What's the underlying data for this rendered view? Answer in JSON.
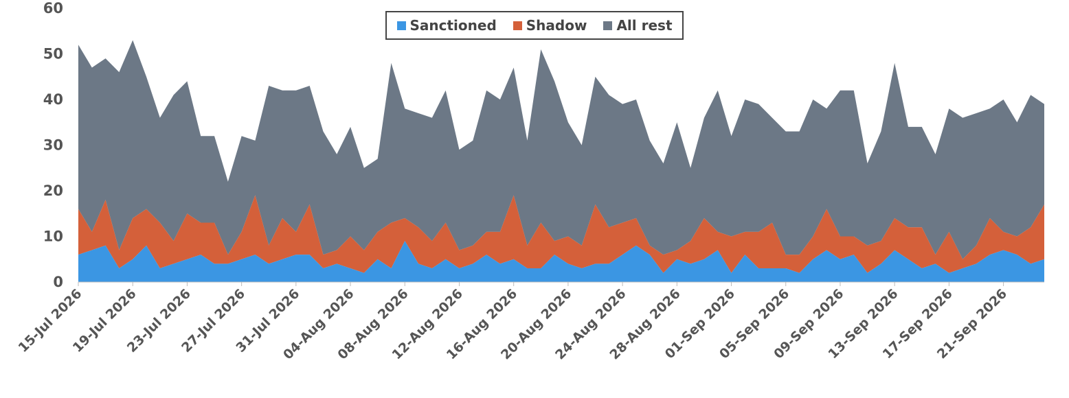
{
  "chart_data": {
    "type": "area",
    "stacked": true,
    "ylim": [
      0,
      60
    ],
    "yticks": [
      0,
      10,
      20,
      30,
      40,
      50,
      60
    ],
    "x_start": "15-Jul-2026",
    "x_tick_labels": [
      "15-Jul 2026",
      "19-Jul 2026",
      "23-Jul 2026",
      "27-Jul 2026",
      "31-Jul 2026",
      "04-Aug 2026",
      "08-Aug 2026",
      "12-Aug 2026",
      "16-Aug 2026",
      "20-Aug 2026",
      "24-Aug 2026",
      "28-Aug 2026",
      "01-Sep 2026",
      "05-Sep 2026",
      "09-Sep 2026",
      "13-Sep 2026",
      "17-Sep 2026",
      "21-Sep 2026"
    ],
    "legend": {
      "position": "top-center"
    },
    "series": [
      {
        "name": "Sanctioned",
        "color": "#3b96e3",
        "values": [
          6,
          7,
          8,
          3,
          5,
          8,
          3,
          4,
          5,
          6,
          4,
          4,
          5,
          6,
          4,
          5,
          6,
          6,
          3,
          4,
          3,
          2,
          5,
          3,
          9,
          4,
          3,
          5,
          3,
          4,
          6,
          4,
          5,
          3,
          3,
          6,
          4,
          3,
          4,
          4,
          6,
          8,
          6,
          2,
          5,
          4,
          5,
          7,
          2,
          6,
          3,
          3,
          3,
          2,
          5,
          7,
          5,
          6,
          2,
          4,
          7,
          5,
          3,
          4,
          2,
          3,
          4,
          6,
          7,
          6,
          4,
          5
        ]
      },
      {
        "name": "Shadow",
        "color": "#d4603a",
        "values": [
          10,
          4,
          10,
          4,
          9,
          8,
          10,
          5,
          10,
          7,
          9,
          2,
          6,
          13,
          4,
          9,
          5,
          11,
          3,
          3,
          7,
          5,
          6,
          10,
          5,
          8,
          6,
          8,
          4,
          4,
          5,
          7,
          14,
          5,
          10,
          3,
          6,
          5,
          13,
          8,
          7,
          6,
          2,
          4,
          2,
          5,
          9,
          4,
          8,
          5,
          8,
          10,
          3,
          4,
          5,
          9,
          5,
          4,
          6,
          5,
          7,
          7,
          9,
          2,
          9,
          2,
          4,
          8,
          4,
          4,
          8,
          12
        ]
      },
      {
        "name": "All rest",
        "color": "#6c7886",
        "values": [
          36,
          36,
          31,
          39,
          39,
          29,
          23,
          32,
          29,
          19,
          19,
          16,
          21,
          12,
          35,
          28,
          31,
          26,
          27,
          21,
          24,
          18,
          16,
          35,
          24,
          25,
          27,
          29,
          22,
          23,
          31,
          29,
          28,
          23,
          38,
          35,
          25,
          22,
          28,
          29,
          26,
          26,
          23,
          20,
          28,
          16,
          22,
          31,
          22,
          29,
          28,
          23,
          27,
          27,
          30,
          22,
          32,
          32,
          18,
          24,
          34,
          22,
          22,
          22,
          27,
          31,
          29,
          24,
          29,
          25,
          29,
          22
        ]
      }
    ]
  }
}
